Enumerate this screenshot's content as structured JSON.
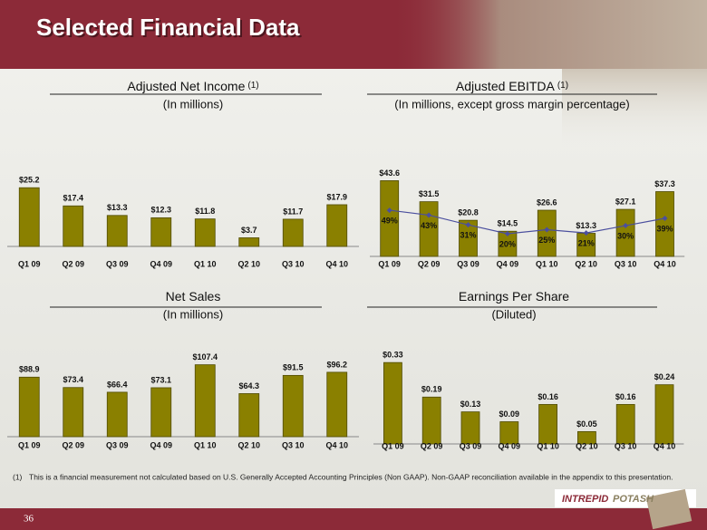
{
  "title": "Selected Financial Data",
  "chart_data": [
    {
      "type": "bar",
      "title": "Adjusted Net Income",
      "title_note": "(1)",
      "subtitle": "(In millions)",
      "categories": [
        "Q1 09",
        "Q2 09",
        "Q3 09",
        "Q4 09",
        "Q1 10",
        "Q2 10",
        "Q3 10",
        "Q4 10"
      ],
      "values": [
        25.2,
        17.4,
        13.3,
        12.3,
        11.8,
        3.7,
        11.7,
        17.9
      ],
      "value_labels": [
        "$25.2",
        "$17.4",
        "$13.3",
        "$12.3",
        "$11.8",
        "$3.7",
        "$11.7",
        "$17.9"
      ],
      "color": "#8a8000",
      "ylim": [
        0,
        28
      ]
    },
    {
      "type": "bar",
      "title": "Adjusted EBITDA",
      "title_note": "(1)",
      "subtitle": "(In millions, except gross margin percentage)",
      "categories": [
        "Q1 09",
        "Q2 09",
        "Q3 09",
        "Q4 09",
        "Q1 10",
        "Q2 10",
        "Q3 10",
        "Q4 10"
      ],
      "values": [
        43.6,
        31.5,
        20.8,
        14.5,
        26.6,
        13.3,
        27.1,
        37.3
      ],
      "value_labels": [
        "$43.6",
        "$31.5",
        "$20.8",
        "$14.5",
        "$26.6",
        "$13.3",
        "$27.1",
        "$37.3"
      ],
      "color": "#8a8000",
      "ylim": [
        0,
        48
      ],
      "line": {
        "values": [
          49,
          43,
          31,
          20,
          25,
          21,
          30,
          39
        ],
        "value_labels": [
          "49%",
          "43%",
          "31%",
          "20%",
          "25%",
          "21%",
          "30%",
          "39%"
        ],
        "color": "#4b4f9e",
        "axis": "y2"
      },
      "y2lim": [
        -8,
        95
      ]
    },
    {
      "type": "bar",
      "title": "Net Sales",
      "subtitle": "(In millions)",
      "categories": [
        "Q1 09",
        "Q2 09",
        "Q3 09",
        "Q4 09",
        "Q1 10",
        "Q2 10",
        "Q3 10",
        "Q4 10"
      ],
      "values": [
        88.9,
        73.4,
        66.4,
        73.1,
        107.4,
        64.3,
        91.5,
        96.2
      ],
      "value_labels": [
        "$88.9",
        "$73.4",
        "$66.4",
        "$73.1",
        "$107.4",
        "$64.3",
        "$91.5",
        "$96.2"
      ],
      "color": "#8a8000",
      "ylim": [
        0,
        115
      ]
    },
    {
      "type": "bar",
      "title": "Earnings Per Share",
      "subtitle": "(Diluted)",
      "categories": [
        "Q1 09",
        "Q2 09",
        "Q3 09",
        "Q4 09",
        "Q1 10",
        "Q2 10",
        "Q3 10",
        "Q4 10"
      ],
      "values": [
        0.33,
        0.19,
        0.13,
        0.09,
        0.16,
        0.05,
        0.16,
        0.24
      ],
      "value_labels": [
        "$0.33",
        "$0.19",
        "$0.13",
        "$0.09",
        "$0.16",
        "$0.05",
        "$0.16",
        "$0.24"
      ],
      "color": "#8a8000",
      "ylim": [
        0,
        0.36
      ]
    }
  ],
  "footnote": {
    "marker": "(1)",
    "text": "This is a financial  measurement not calculated based on U.S. Generally Accepted Accounting Principles (Non GAAP). Non-GAAP reconciliation available in the appendix to this presentation."
  },
  "page_number": "36",
  "logo": [
    "INTREPID",
    "POTASH"
  ]
}
